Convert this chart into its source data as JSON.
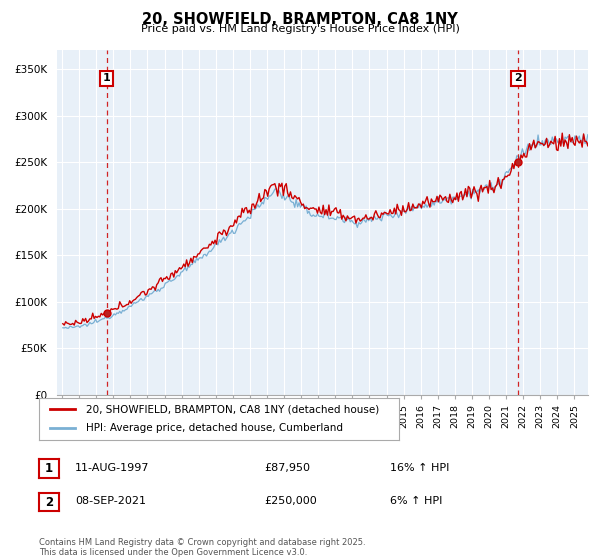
{
  "title": "20, SHOWFIELD, BRAMPTON, CA8 1NY",
  "subtitle": "Price paid vs. HM Land Registry's House Price Index (HPI)",
  "legend_entries": [
    {
      "label": "20, SHOWFIELD, BRAMPTON, CA8 1NY (detached house)",
      "color": "#cc0000"
    },
    {
      "label": "HPI: Average price, detached house, Cumberland",
      "color": "#7ab0d4"
    }
  ],
  "ylim": [
    0,
    370000
  ],
  "yticks": [
    0,
    50000,
    100000,
    150000,
    200000,
    250000,
    300000,
    350000
  ],
  "ytick_labels": [
    "£0",
    "£50K",
    "£100K",
    "£150K",
    "£200K",
    "£250K",
    "£300K",
    "£350K"
  ],
  "xlim_start": 1994.7,
  "xlim_end": 2025.8,
  "background_color": "#ffffff",
  "plot_bg_color": "#e8f0f8",
  "grid_color": "#ffffff",
  "red_line_color": "#cc0000",
  "blue_line_color": "#7ab0d4",
  "vline_color": "#cc0000",
  "sale1_x": 1997.614,
  "sale1_y": 87950,
  "sale2_x": 2021.692,
  "sale2_y": 250000,
  "footnote": "Contains HM Land Registry data © Crown copyright and database right 2025.\nThis data is licensed under the Open Government Licence v3.0.",
  "xtick_years": [
    1995,
    1996,
    1997,
    1998,
    1999,
    2000,
    2001,
    2002,
    2003,
    2004,
    2005,
    2006,
    2007,
    2008,
    2009,
    2010,
    2011,
    2012,
    2013,
    2014,
    2015,
    2016,
    2017,
    2018,
    2019,
    2020,
    2021,
    2022,
    2023,
    2024,
    2025
  ],
  "table_rows": [
    {
      "num": "1",
      "date": "11-AUG-1997",
      "price": "£87,950",
      "hpi": "16% ↑ HPI"
    },
    {
      "num": "2",
      "date": "08-SEP-2021",
      "price": "£250,000",
      "hpi": "6% ↑ HPI"
    }
  ]
}
